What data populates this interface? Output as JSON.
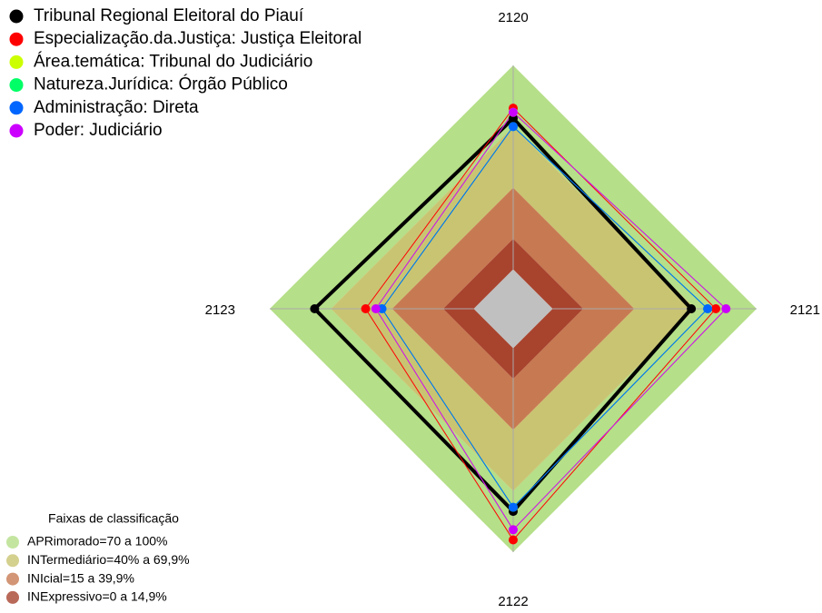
{
  "chart_data": {
    "type": "radar",
    "categories": [
      "2120",
      "2121",
      "2122",
      "2123"
    ],
    "rlim": [
      0,
      100
    ],
    "series": [
      {
        "name": "Tribunal Regional Eleitoral do Piauí",
        "color": "#000000",
        "values": [
          74,
          68,
          80,
          78
        ]
      },
      {
        "name": "Especialização.da.Justiça: Justiça Eleitoral",
        "color": "#ff0000",
        "values": [
          79,
          80,
          94,
          53
        ]
      },
      {
        "name": "Área.temática: Tribunal do Judiciário",
        "color": "#ccff00",
        "values": [
          77,
          85,
          89,
          48
        ]
      },
      {
        "name": "Natureza.Jurídica: Órgão Público",
        "color": "#00ff66",
        "values": [
          70,
          76,
          78,
          45
        ]
      },
      {
        "name": "Administração: Direta",
        "color": "#0066ff",
        "values": [
          70,
          76,
          78,
          45
        ]
      },
      {
        "name": "Poder: Judiciário",
        "color": "#cc00ff",
        "values": [
          77,
          85,
          89,
          48
        ]
      }
    ],
    "bands_title": "Faixas de classificação",
    "bands": [
      {
        "label": "APRimorado=70 a 100%",
        "range": [
          70,
          100
        ],
        "color": "#b5df88"
      },
      {
        "label": "INTermediário=40% a 69,9%",
        "range": [
          40,
          70
        ],
        "color": "#c9c472"
      },
      {
        "label": "INIcial=15 a 39,9%",
        "range": [
          15,
          40
        ],
        "color": "#c77a52"
      },
      {
        "label": "INExpressivo=0 a 14,9%",
        "range": [
          0,
          15
        ],
        "color": "#a8432e"
      }
    ]
  }
}
